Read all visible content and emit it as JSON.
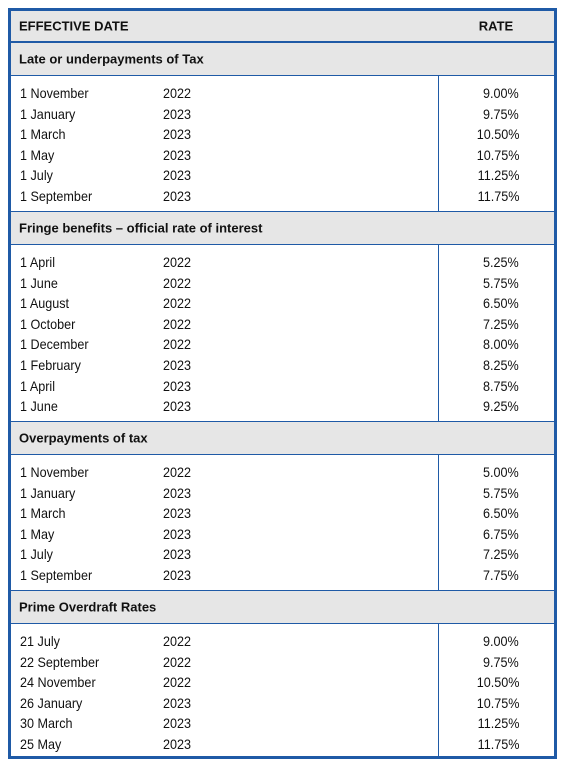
{
  "header": {
    "date_label": "EFFECTIVE DATE",
    "rate_label": "RATE"
  },
  "sections": [
    {
      "title": "Late or underpayments of Tax",
      "rows": [
        {
          "date": "1 November",
          "year": "2022",
          "rate": "9.00%"
        },
        {
          "date": "1 January",
          "year": "2023",
          "rate": "9.75%"
        },
        {
          "date": "1 March",
          "year": "2023",
          "rate": "10.50%"
        },
        {
          "date": "1 May",
          "year": "2023",
          "rate": "10.75%"
        },
        {
          "date": "1 July",
          "year": "2023",
          "rate": "11.25%"
        },
        {
          "date": "1 September",
          "year": "2023",
          "rate": "11.75%"
        }
      ]
    },
    {
      "title": "Fringe benefits – official rate of interest",
      "rows": [
        {
          "date": "1 April",
          "year": "2022",
          "rate": "5.25%"
        },
        {
          "date": "1 June",
          "year": "2022",
          "rate": "5.75%"
        },
        {
          "date": "1 August",
          "year": "2022",
          "rate": "6.50%"
        },
        {
          "date": "1 October",
          "year": "2022",
          "rate": "7.25%"
        },
        {
          "date": "1 December",
          "year": "2022",
          "rate": "8.00%"
        },
        {
          "date": "1 February",
          "year": "2023",
          "rate": "8.25%"
        },
        {
          "date": "1 April",
          "year": "2023",
          "rate": "8.75%"
        },
        {
          "date": "1 June",
          "year": "2023",
          "rate": "9.25%"
        }
      ]
    },
    {
      "title": "Overpayments of tax",
      "rows": [
        {
          "date": "1 November",
          "year": "2022",
          "rate": "5.00%"
        },
        {
          "date": "1 January",
          "year": "2023",
          "rate": "5.75%"
        },
        {
          "date": "1 March",
          "year": "2023",
          "rate": "6.50%"
        },
        {
          "date": "1 May",
          "year": "2023",
          "rate": "6.75%"
        },
        {
          "date": "1 July",
          "year": "2023",
          "rate": "7.25%"
        },
        {
          "date": "1 September",
          "year": "2023",
          "rate": "7.75%"
        }
      ]
    },
    {
      "title": "Prime Overdraft Rates",
      "rows": [
        {
          "date": "21 July",
          "year": "2022",
          "rate": "9.00%"
        },
        {
          "date": "22 September",
          "year": "2022",
          "rate": "9.75%"
        },
        {
          "date": "24 November",
          "year": "2022",
          "rate": "10.50%"
        },
        {
          "date": "26 January",
          "year": "2023",
          "rate": "10.75%"
        },
        {
          "date": "30 March",
          "year": "2023",
          "rate": "11.25%"
        },
        {
          "date": "25 May",
          "year": "2023",
          "rate": "11.75%"
        }
      ]
    }
  ]
}
